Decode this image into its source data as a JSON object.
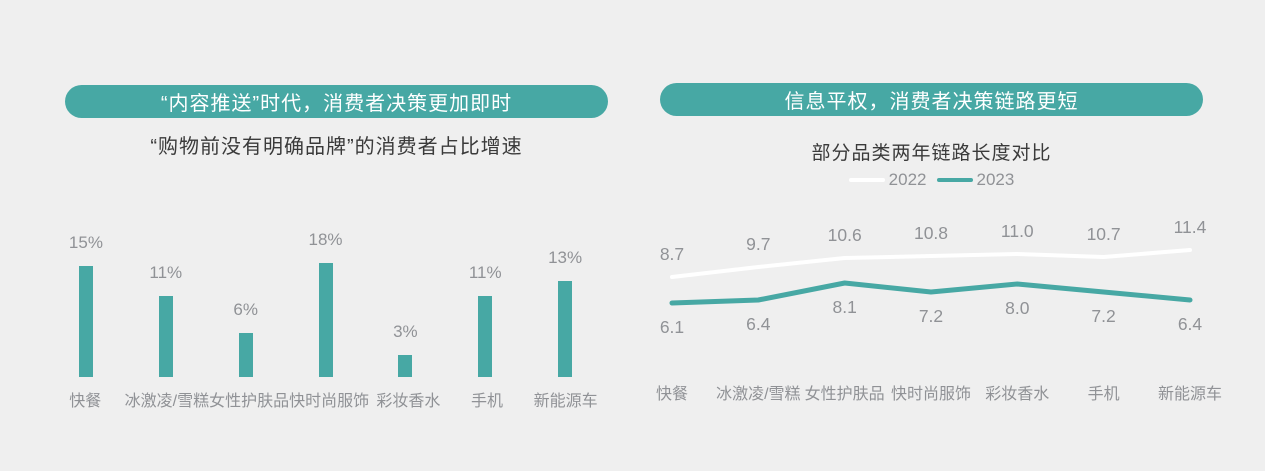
{
  "page": {
    "background": "#efefef",
    "accent_color": "#47a8a4",
    "label_color": "#909296",
    "title_color": "#3a3a3a"
  },
  "left_chart": {
    "header": "“内容推送”时代，消费者决策更加即时",
    "subtitle": "“购物前没有明确品牌”的消费者占比增速"
  },
  "right_chart": {
    "header": "信息平权，消费者决策链路更短",
    "subtitle": "部分品类两年链路长度对比",
    "legend": [
      {
        "label": "2022",
        "color": "#ffffff"
      },
      {
        "label": "2023",
        "color": "#47a8a4"
      }
    ]
  },
  "chart_data": [
    {
      "type": "bar",
      "title": "“购物前没有明确品牌”的消费者占比增速",
      "categories": [
        "快餐",
        "冰激凌/雪糕",
        "女性护肤品",
        "快时尚服饰",
        "彩妆香水",
        "手机",
        "新能源车"
      ],
      "values": [
        15,
        11,
        6,
        18,
        3,
        11,
        13
      ],
      "value_labels": [
        "15%",
        "11%",
        "6%",
        "18%",
        "3%",
        "11%",
        "13%"
      ],
      "unit": "%",
      "bar_color": "#47a8a4",
      "ylim": [
        0,
        18
      ],
      "grid": false,
      "xlabel": "",
      "ylabel": ""
    },
    {
      "type": "line",
      "title": "部分品类两年链路长度对比",
      "categories": [
        "快餐",
        "冰激凌/雪糕",
        "女性护肤品",
        "快时尚服饰",
        "彩妆香水",
        "手机",
        "新能源车"
      ],
      "series": [
        {
          "name": "2022",
          "color": "#ffffff",
          "values": [
            8.7,
            9.7,
            10.6,
            10.8,
            11.0,
            10.7,
            11.4
          ]
        },
        {
          "name": "2023",
          "color": "#47a8a4",
          "values": [
            6.1,
            6.4,
            8.1,
            7.2,
            8.0,
            7.2,
            6.4
          ]
        }
      ],
      "ylim": [
        5,
        12
      ],
      "grid": false,
      "legend_position": "top",
      "xlabel": "",
      "ylabel": ""
    }
  ]
}
